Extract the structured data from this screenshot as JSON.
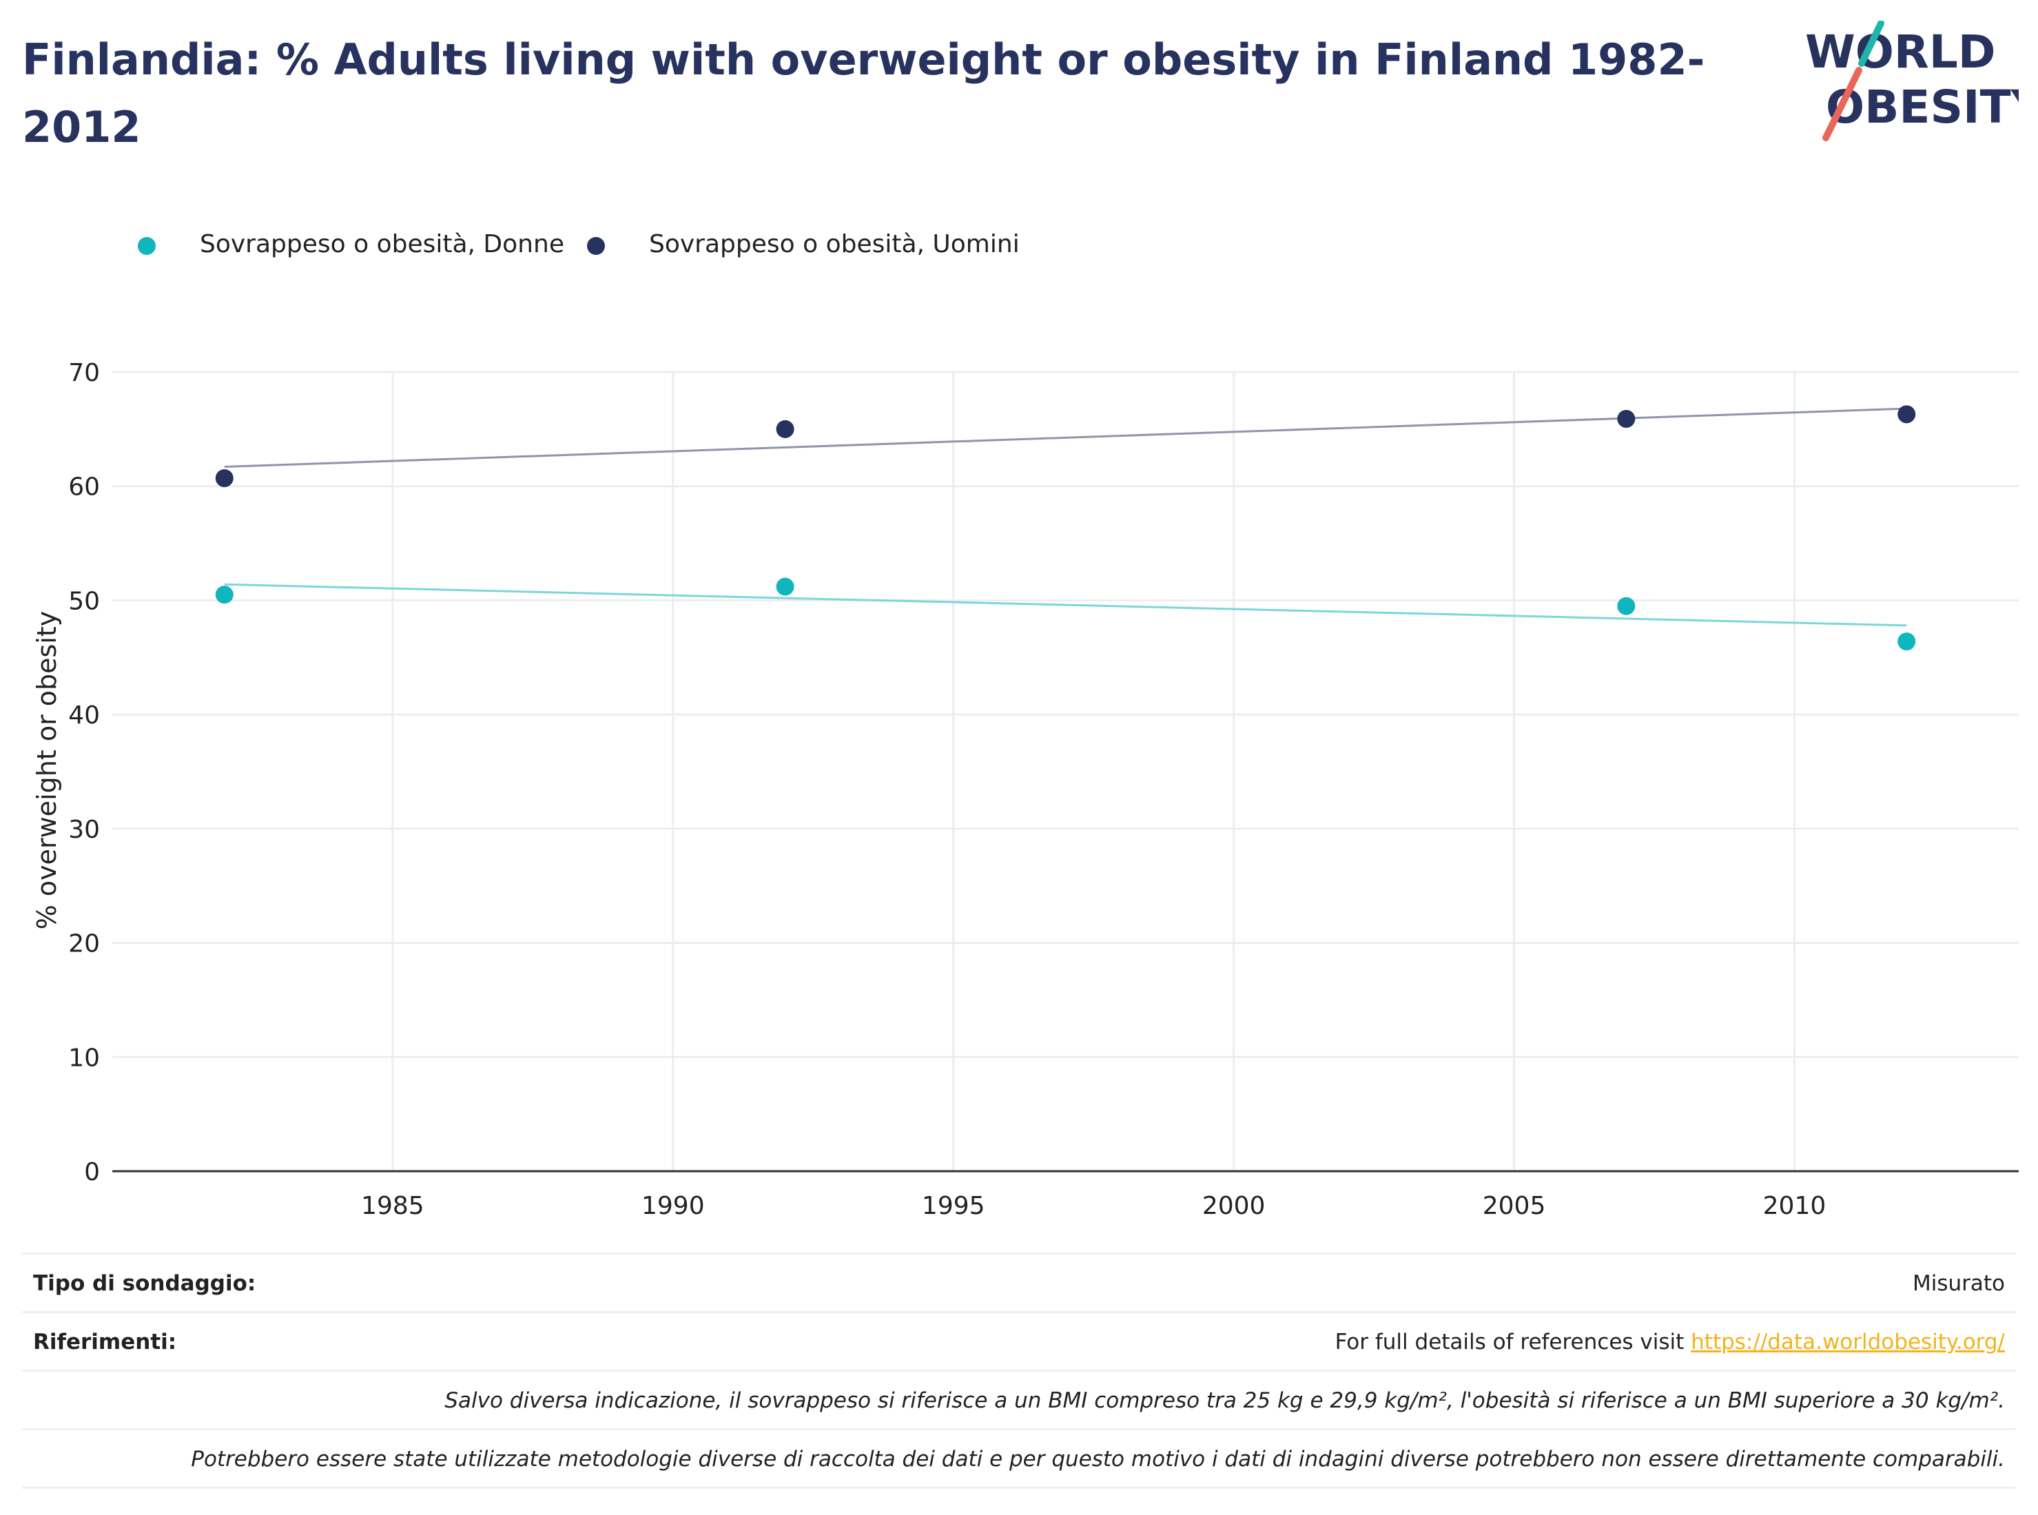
{
  "title": "Finlandia: % Adults living with overweight or obesity in Finland 1982-2012",
  "logo": {
    "line1": "WORLD",
    "line2": "OBESITY"
  },
  "colors": {
    "title": "#27325e",
    "women": "#0fb6bd",
    "men": "#27325e",
    "women_trend": "#7dd6d9",
    "men_trend": "#8f95aa",
    "link": "#f2b31b"
  },
  "legend": [
    {
      "label": "Sovrappeso o obesità, Donne",
      "color": "#0fb6bd"
    },
    {
      "label": "Sovrappeso o obesità, Uomini",
      "color": "#27325e"
    }
  ],
  "chart_data": {
    "type": "scatter",
    "ylabel": "% overweight or obesity",
    "xlabel": "",
    "xlim": [
      1980,
      2014
    ],
    "ylim": [
      0,
      70
    ],
    "xticks": [
      1985,
      1990,
      1995,
      2000,
      2005,
      2010
    ],
    "yticks": [
      0,
      10,
      20,
      30,
      40,
      50,
      60,
      70
    ],
    "grid": true,
    "legend_position": "top-left",
    "series": [
      {
        "name": "Sovrappeso o obesità, Donne",
        "x": [
          1982,
          1992,
          2007,
          2012
        ],
        "y": [
          50.5,
          51.2,
          49.5,
          46.4
        ],
        "trendline": {
          "x": [
            1982,
            2012
          ],
          "y": [
            51.4,
            47.8
          ]
        }
      },
      {
        "name": "Sovrappeso o obesità, Uomini",
        "x": [
          1982,
          1992,
          2007,
          2012
        ],
        "y": [
          60.7,
          65.0,
          65.9,
          66.3
        ],
        "trendline": {
          "x": [
            1982,
            2012
          ],
          "y": [
            61.7,
            66.8
          ]
        }
      }
    ]
  },
  "info": {
    "survey_type_label": "Tipo di sondaggio:",
    "survey_type_value": "Misurato",
    "references_label": "Riferimenti:",
    "references_text": "For full details of references visit",
    "references_link": "https://data.worldobesity.org/",
    "note1": "Salvo diversa indicazione, il sovrappeso si riferisce a un BMI compreso tra 25 kg e 29,9 kg/m², l'obesità si riferisce a un BMI superiore a 30 kg/m².",
    "note2": "Potrebbero essere state utilizzate metodologie diverse di raccolta dei dati e per questo motivo i dati di indagini diverse potrebbero non essere direttamente comparabili."
  }
}
